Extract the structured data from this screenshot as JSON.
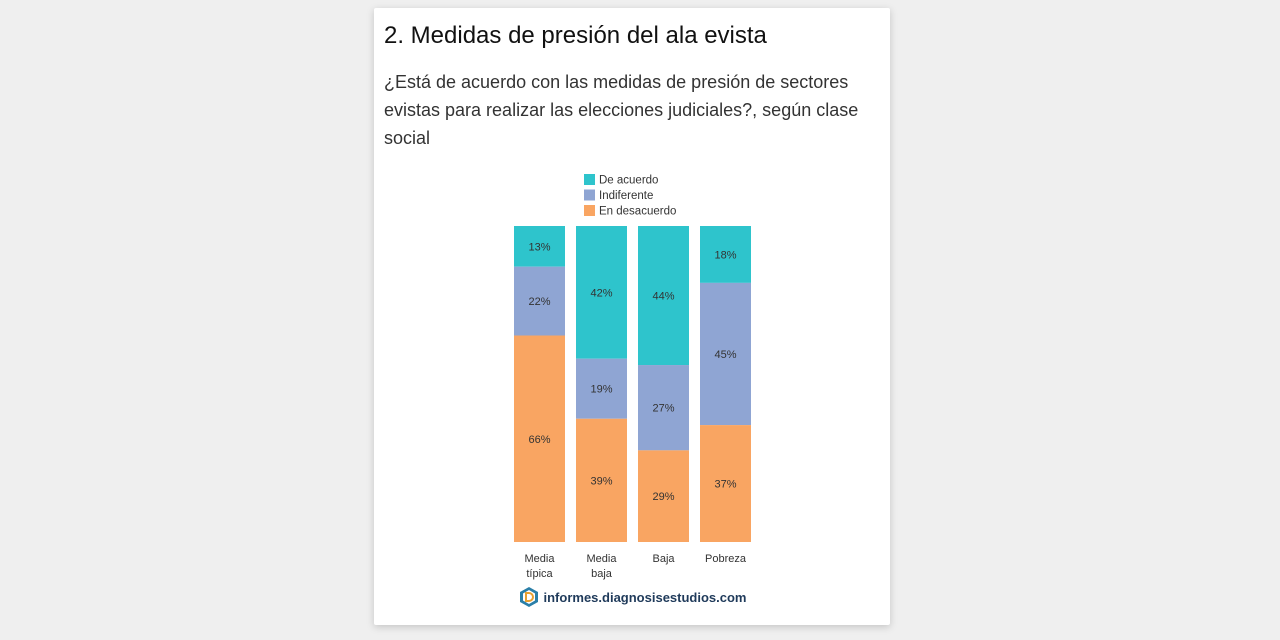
{
  "card": {
    "title": "2. Medidas de presión del ala evista",
    "subtitle": "¿Está de acuerdo con las medidas de presión de sectores evistas para realizar las elecciones judiciales?, según clase social"
  },
  "footer": {
    "source": "informes.diagnosisestudios.com",
    "logo_icon": "diagnosis-logo-icon"
  },
  "colors": {
    "de_acuerdo": "#2ec4cc",
    "indiferente": "#8fa5d3",
    "en_desacuerdo": "#f9a562"
  },
  "chart_data": {
    "type": "bar",
    "stacked": true,
    "legend_position": "top",
    "categories": [
      [
        "Media",
        "típica"
      ],
      [
        "Media",
        "baja"
      ],
      [
        "Baja"
      ],
      [
        "Pobreza"
      ]
    ],
    "series": [
      {
        "name": "De acuerdo",
        "values": [
          13,
          42,
          44,
          18
        ],
        "labels": [
          "13%",
          "42%",
          "44%",
          "18%"
        ]
      },
      {
        "name": "Indiferente",
        "values": [
          22,
          19,
          27,
          45
        ],
        "labels": [
          "22%",
          "19%",
          "27%",
          "45%"
        ]
      },
      {
        "name": "En desacuerdo",
        "values": [
          66,
          39,
          29,
          37
        ],
        "labels": [
          "66%",
          "39%",
          "29%",
          "37%"
        ]
      }
    ]
  }
}
